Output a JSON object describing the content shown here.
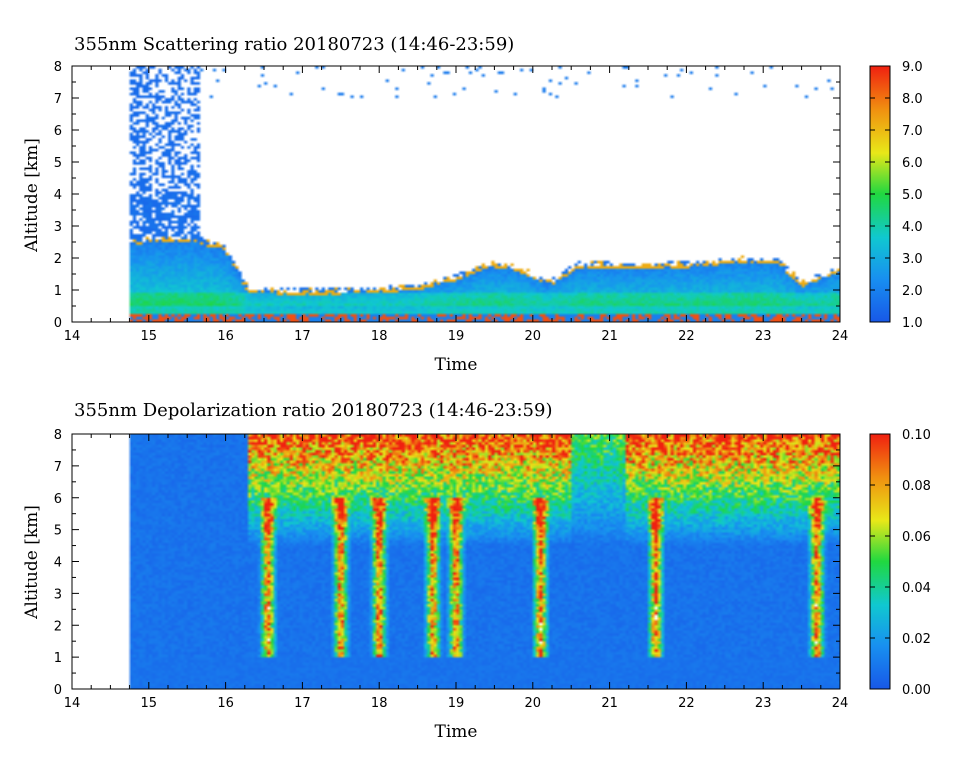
{
  "chart_data": [
    {
      "type": "heatmap",
      "title": "355nm Scattering ratio  20180723 (14:46-23:59)",
      "xlabel": "Time",
      "ylabel": "Altitude [km]",
      "xlim": [
        14,
        24
      ],
      "ylim": [
        0,
        8
      ],
      "x_ticks": [
        "14",
        "15",
        "16",
        "17",
        "18",
        "19",
        "20",
        "21",
        "22",
        "23",
        "24"
      ],
      "y_ticks": [
        "0",
        "1",
        "2",
        "3",
        "4",
        "5",
        "6",
        "7",
        "8"
      ],
      "data_start_time": 14.77,
      "colorbar": {
        "min": 1.0,
        "max": 9.0,
        "ticks": [
          "1.0",
          "2.0",
          "3.0",
          "4.0",
          "5.0",
          "6.0",
          "7.0",
          "8.0",
          "9.0"
        ]
      },
      "boundary_layer_top_km": [
        [
          14.77,
          2.65
        ],
        [
          15.6,
          2.7
        ],
        [
          16.0,
          2.4
        ],
        [
          16.3,
          1.1
        ],
        [
          17.0,
          1.05
        ],
        [
          18.0,
          1.1
        ],
        [
          18.5,
          1.2
        ],
        [
          19.0,
          1.5
        ],
        [
          19.4,
          1.9
        ],
        [
          19.8,
          1.8
        ],
        [
          20.2,
          1.3
        ],
        [
          20.6,
          1.9
        ],
        [
          21.5,
          1.85
        ],
        [
          22.0,
          1.9
        ],
        [
          22.7,
          2.05
        ],
        [
          23.2,
          2.0
        ],
        [
          23.5,
          1.3
        ],
        [
          23.95,
          1.7
        ]
      ]
    },
    {
      "type": "heatmap",
      "title": "355nm Depolarization ratio  20180723 (14:46-23:59)",
      "xlabel": "Time",
      "ylabel": "Altitude [km]",
      "xlim": [
        14,
        24
      ],
      "ylim": [
        0,
        8
      ],
      "x_ticks": [
        "14",
        "15",
        "16",
        "17",
        "18",
        "19",
        "20",
        "21",
        "22",
        "23",
        "24"
      ],
      "y_ticks": [
        "0",
        "1",
        "2",
        "3",
        "4",
        "5",
        "6",
        "7",
        "8"
      ],
      "data_start_time": 14.77,
      "colorbar": {
        "min": 0.0,
        "max": 0.1,
        "ticks": [
          "0.00",
          "0.02",
          "0.04",
          "0.06",
          "0.08",
          "0.10"
        ]
      },
      "high_depolarization_columns_hr": [
        16.55,
        17.5,
        18.0,
        18.7,
        19.0,
        20.1,
        21.6,
        23.7
      ]
    }
  ],
  "colors": {
    "colormap": [
      "#1858e8",
      "#1890f0",
      "#10c8d0",
      "#20d840",
      "#e8e818",
      "#f09010",
      "#f02010"
    ]
  }
}
